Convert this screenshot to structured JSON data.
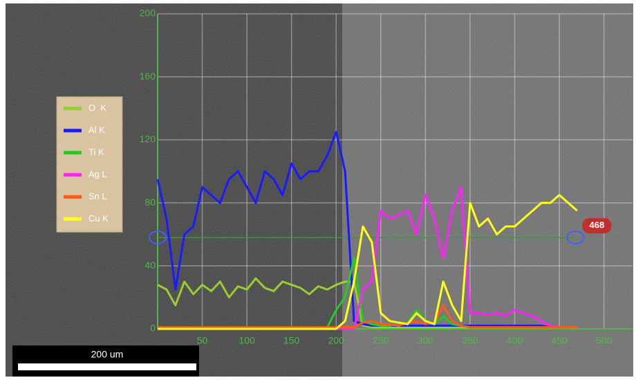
{
  "chart_data": {
    "type": "line",
    "x": [
      0,
      10,
      20,
      30,
      40,
      50,
      60,
      70,
      80,
      90,
      100,
      110,
      120,
      130,
      140,
      150,
      160,
      170,
      180,
      190,
      200,
      210,
      220,
      230,
      240,
      250,
      260,
      270,
      280,
      290,
      300,
      310,
      320,
      330,
      340,
      350,
      360,
      370,
      380,
      390,
      400,
      410,
      420,
      430,
      440,
      450,
      460,
      470
    ],
    "series": [
      {
        "name": "O  K",
        "color": "#9acd32",
        "values": [
          28,
          25,
          15,
          30,
          22,
          28,
          24,
          30,
          20,
          27,
          25,
          32,
          26,
          24,
          30,
          28,
          26,
          22,
          27,
          25,
          28,
          30,
          30,
          2,
          1,
          1,
          1,
          1,
          1,
          1,
          1,
          1,
          1,
          1,
          1,
          1,
          1,
          1,
          1,
          1,
          1,
          1,
          1,
          1,
          1,
          1,
          1,
          1
        ]
      },
      {
        "name": "Al K",
        "color": "#1a1aff",
        "values": [
          95,
          70,
          25,
          60,
          65,
          90,
          85,
          80,
          95,
          100,
          90,
          80,
          100,
          95,
          85,
          105,
          95,
          100,
          100,
          110,
          125,
          100,
          5,
          3,
          2,
          2,
          2,
          2,
          2,
          2,
          2,
          2,
          2,
          2,
          2,
          2,
          2,
          2,
          2,
          2,
          2,
          2,
          2,
          2,
          1,
          null,
          null,
          null
        ]
      },
      {
        "name": "Ti K",
        "color": "#22cc22",
        "values": [
          1,
          1,
          1,
          1,
          1,
          1,
          1,
          1,
          1,
          1,
          1,
          1,
          1,
          1,
          1,
          1,
          1,
          1,
          1,
          1,
          12,
          20,
          45,
          5,
          3,
          2,
          2,
          3,
          4,
          12,
          5,
          3,
          8,
          3,
          2,
          1,
          1,
          1,
          1,
          1,
          1,
          1,
          1,
          1,
          1,
          1,
          1,
          1
        ]
      },
      {
        "name": "Ag L",
        "color": "#ff22ff",
        "values": [
          0,
          0,
          0,
          0,
          0,
          0,
          0,
          0,
          0,
          0,
          0,
          0,
          0,
          0,
          0,
          0,
          0,
          0,
          0,
          0,
          0,
          0,
          0,
          25,
          30,
          75,
          70,
          72,
          75,
          60,
          85,
          70,
          45,
          75,
          90,
          10,
          10,
          9,
          10,
          8,
          12,
          10,
          8,
          5,
          2,
          1,
          1,
          1
        ]
      },
      {
        "name": "Sn L",
        "color": "#ff5a1a",
        "values": [
          1,
          1,
          1,
          1,
          1,
          1,
          1,
          1,
          1,
          1,
          1,
          1,
          1,
          1,
          1,
          1,
          1,
          1,
          1,
          1,
          1,
          1,
          1,
          4,
          5,
          3,
          3,
          2,
          4,
          5,
          3,
          4,
          15,
          5,
          2,
          1,
          1,
          1,
          1,
          1,
          1,
          1,
          1,
          1,
          1,
          1,
          1,
          1
        ]
      },
      {
        "name": "Cu K",
        "color": "#ffff1a",
        "values": [
          0,
          0,
          0,
          0,
          0,
          0,
          0,
          0,
          0,
          0,
          0,
          0,
          0,
          0,
          0,
          0,
          0,
          0,
          0,
          0,
          0,
          5,
          30,
          65,
          55,
          10,
          5,
          4,
          3,
          10,
          5,
          3,
          30,
          15,
          5,
          80,
          65,
          70,
          60,
          65,
          65,
          70,
          75,
          80,
          80,
          85,
          80,
          75
        ]
      }
    ],
    "xlim": [
      0,
      532
    ],
    "ylim": [
      0,
      200
    ],
    "xticks": [
      50,
      100,
      150,
      200,
      250,
      300,
      350,
      400,
      450,
      500
    ],
    "yticks": [
      0,
      40,
      80,
      120,
      160,
      200
    ],
    "grid": true,
    "cursor": {
      "x": 468,
      "y": 58
    },
    "scale_bar_label": "200 um"
  }
}
